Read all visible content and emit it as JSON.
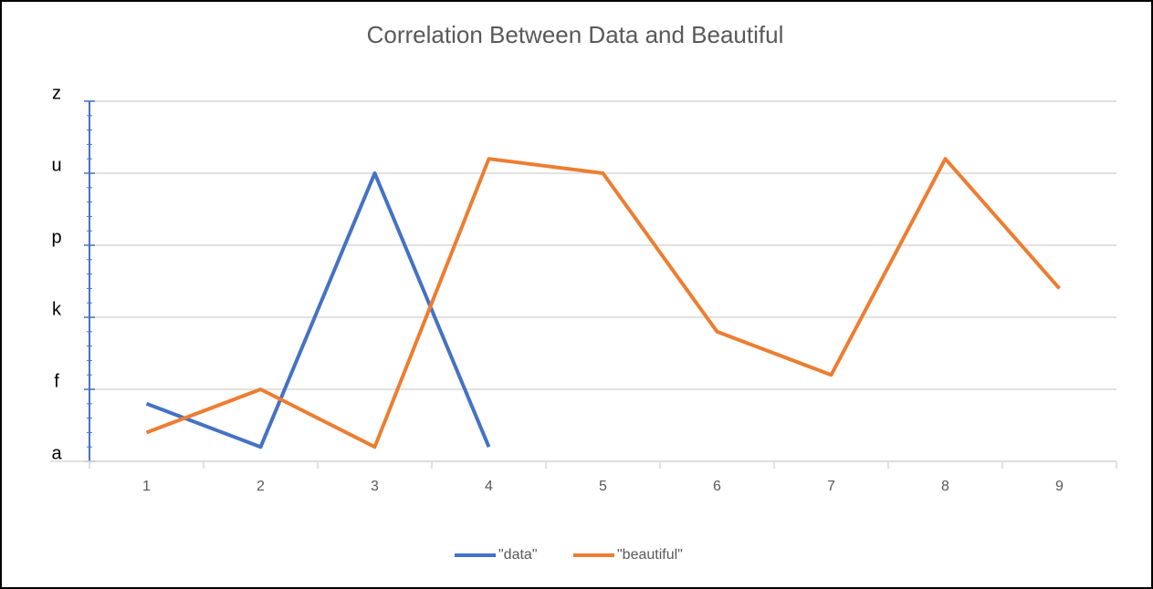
{
  "chart_data": {
    "type": "line",
    "title": "Correlation Between Data and Beautiful",
    "categories": [
      1,
      2,
      3,
      4,
      5,
      6,
      7,
      8,
      9
    ],
    "series": [
      {
        "name": "\"data\"",
        "color": "#4472c4",
        "values": [
          5,
          2,
          21,
          2,
          null,
          null,
          null,
          null,
          null
        ]
      },
      {
        "name": "\"beautiful\"",
        "color": "#ed7d31",
        "values": [
          3,
          6,
          2,
          22,
          21,
          10,
          7,
          22,
          13
        ]
      }
    ],
    "ylim": [
      1,
      26
    ],
    "yticks": [
      {
        "value": 1,
        "label": "a"
      },
      {
        "value": 6,
        "label": "f"
      },
      {
        "value": 11,
        "label": "k"
      },
      {
        "value": 16,
        "label": "p"
      },
      {
        "value": 21,
        "label": "u"
      },
      {
        "value": 26,
        "label": "z"
      }
    ],
    "grid": true,
    "legend": "bottom"
  }
}
